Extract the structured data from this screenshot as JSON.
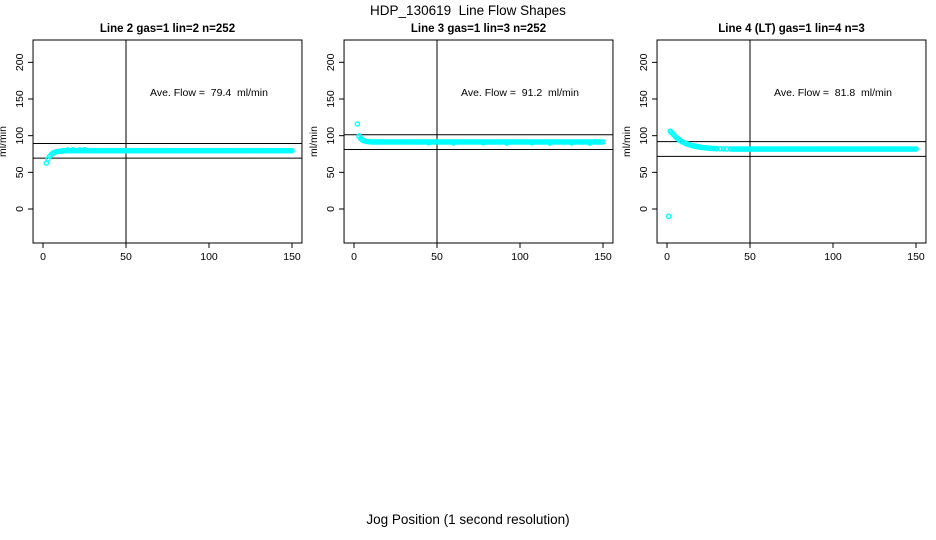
{
  "title": "HDP_130619  Line Flow Shapes",
  "xlabel": "Jog Position (1 second resolution)",
  "colors": {
    "points": "#00ffff",
    "axis": "#000000",
    "text": "#000000",
    "background": "#ffffff"
  },
  "chart_data": [
    {
      "type": "scatter",
      "title": "Line 2 gas=1 lin=2 n=252",
      "ylabel": "ml/min",
      "annotation": "Ave. Flow =  79.4  ml/min",
      "ave_flow": 79.4,
      "x_ticks": [
        0,
        50,
        100,
        150
      ],
      "y_ticks": [
        0,
        50,
        100,
        150,
        200
      ],
      "xlim": [
        -6,
        156
      ],
      "ylim": [
        -40,
        235
      ],
      "hlines": [
        89.4,
        69.4
      ],
      "vline": 50,
      "points": [
        [
          2,
          62.5
        ],
        [
          3,
          68.1
        ],
        [
          4,
          71.9
        ],
        [
          5,
          74.4
        ],
        [
          6,
          76.1
        ],
        [
          7,
          77.2
        ],
        [
          8,
          78.0
        ],
        [
          9,
          78.5
        ],
        [
          10,
          78.8
        ],
        [
          11,
          79.0
        ],
        [
          12,
          79.2
        ],
        [
          13,
          79.3
        ],
        [
          15,
          80.6
        ],
        [
          18,
          80.8
        ],
        [
          22,
          80.5
        ],
        [
          25,
          80.7
        ]
      ],
      "steady": {
        "from": 14,
        "to": 150,
        "step": 1,
        "y": 79.5
      }
    },
    {
      "type": "scatter",
      "title": "Line 3 gas=1 lin=3 n=252",
      "ylabel": "ml/min",
      "annotation": "Ave. Flow =  91.2  ml/min",
      "ave_flow": 91.2,
      "x_ticks": [
        0,
        50,
        100,
        150
      ],
      "y_ticks": [
        0,
        50,
        100,
        150,
        200
      ],
      "xlim": [
        -6,
        156
      ],
      "ylim": [
        -40,
        235
      ],
      "hlines": [
        101.2,
        81.2
      ],
      "vline": 50,
      "points": [
        [
          2,
          116
        ],
        [
          3,
          99.4
        ],
        [
          4,
          96.3
        ],
        [
          5,
          94.3
        ],
        [
          6,
          93.1
        ],
        [
          7,
          92.5
        ],
        [
          8,
          92.0
        ],
        [
          9,
          91.8
        ],
        [
          10,
          91.6
        ],
        [
          45,
          90.3
        ],
        [
          60,
          90.1
        ],
        [
          78,
          90.4
        ],
        [
          92,
          90.0
        ],
        [
          107,
          90.3
        ],
        [
          118,
          89.9
        ],
        [
          131,
          90.2
        ],
        [
          142,
          90.0
        ]
      ],
      "steady": {
        "from": 11,
        "to": 150,
        "step": 1,
        "y": 91.4
      }
    },
    {
      "type": "scatter",
      "title": "Line 4 (LT) gas=1 lin=4 n=3",
      "ylabel": "ml/min",
      "annotation": "Ave. Flow =  81.8  ml/min",
      "ave_flow": 81.8,
      "x_ticks": [
        0,
        50,
        100,
        150
      ],
      "y_ticks": [
        0,
        50,
        100,
        150,
        200
      ],
      "xlim": [
        -6,
        156
      ],
      "ylim": [
        -40,
        235
      ],
      "hlines": [
        91.8,
        71.8
      ],
      "vline": 50,
      "points": [
        [
          1,
          -10
        ],
        [
          2,
          106
        ],
        [
          3,
          104
        ],
        [
          4,
          101.2
        ],
        [
          5,
          98.8
        ],
        [
          6,
          96.7
        ],
        [
          7,
          94.9
        ],
        [
          8,
          93.3
        ],
        [
          9,
          91.9
        ],
        [
          10,
          90.8
        ],
        [
          11,
          89.7
        ],
        [
          12,
          88.8
        ],
        [
          13,
          88.0
        ],
        [
          14,
          87.3
        ],
        [
          15,
          86.6
        ],
        [
          16,
          86.1
        ],
        [
          17,
          85.6
        ],
        [
          18,
          85.1
        ],
        [
          19,
          84.7
        ],
        [
          20,
          84.4
        ],
        [
          21,
          84.0
        ],
        [
          22,
          83.7
        ],
        [
          23,
          83.5
        ],
        [
          24,
          83.2
        ],
        [
          25,
          83.0
        ],
        [
          26,
          82.8
        ],
        [
          27,
          82.6
        ],
        [
          28,
          82.5
        ],
        [
          29,
          82.4
        ],
        [
          30,
          82.3
        ],
        [
          32,
          82.1
        ],
        [
          34,
          82.0
        ],
        [
          36,
          81.9
        ],
        [
          38,
          81.9
        ]
      ],
      "steady": {
        "from": 39,
        "to": 150,
        "step": 1,
        "y": 81.8
      }
    }
  ]
}
